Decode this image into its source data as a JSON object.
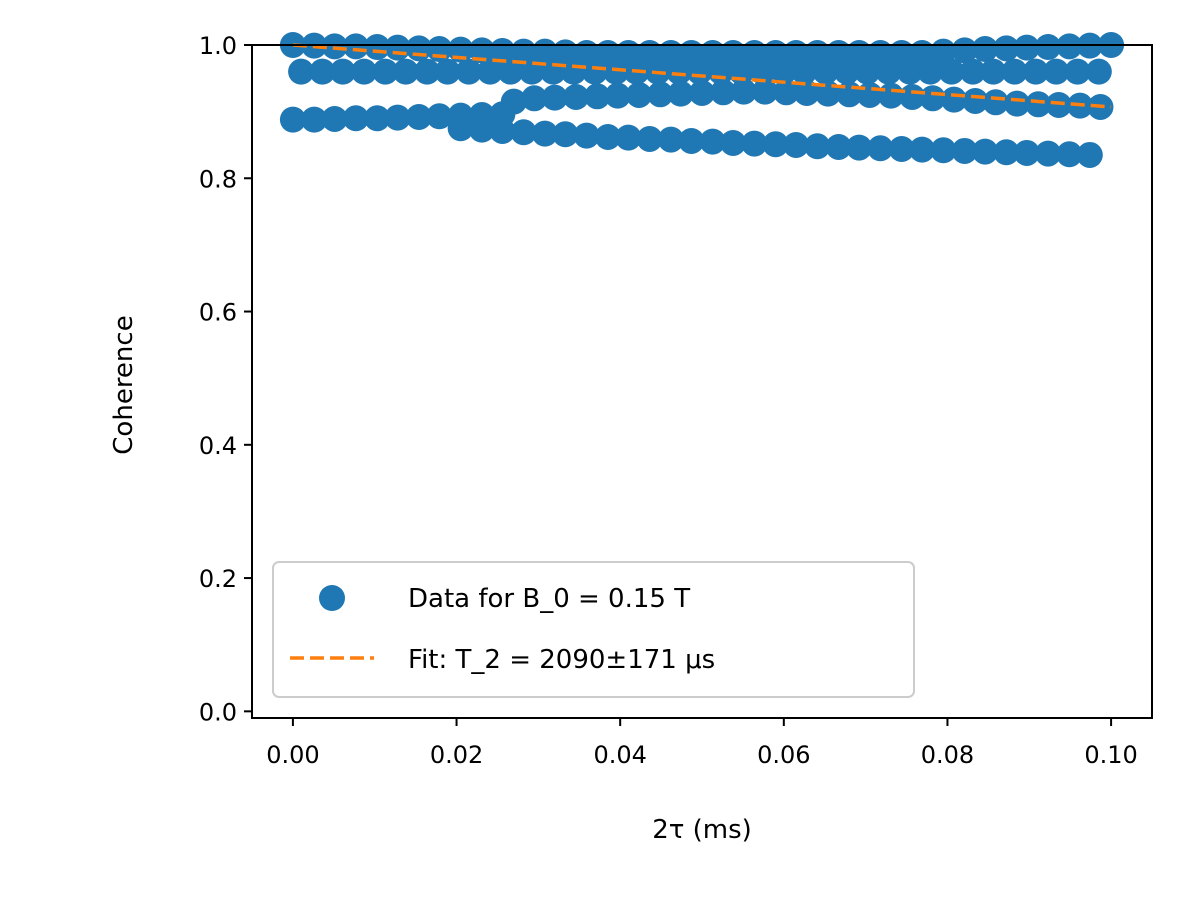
{
  "chart_data": {
    "type": "scatter",
    "xlabel": "2τ (ms)",
    "ylabel": "Coherence",
    "xlim": [
      -0.005,
      0.105
    ],
    "ylim": [
      -0.01,
      1.0
    ],
    "x_ticks": [
      "0.00",
      "0.02",
      "0.04",
      "0.06",
      "0.08",
      "0.10"
    ],
    "y_ticks": [
      "0.0",
      "0.2",
      "0.4",
      "0.6",
      "0.8",
      "1.0"
    ],
    "grid": false,
    "legend_position": "lower-left",
    "colors": {
      "data": "#1f77b4",
      "fit": "#ff7f0e"
    },
    "series": [
      {
        "name": "Data for B_0 = 0.15 T",
        "kind": "scatter",
        "color": "#1f77b4",
        "points": [
          [
            0.0,
            1.0
          ],
          [
            0.0026,
            0.999
          ],
          [
            0.0051,
            0.998
          ],
          [
            0.0077,
            0.998
          ],
          [
            0.0103,
            0.997
          ],
          [
            0.0128,
            0.996
          ],
          [
            0.0154,
            0.995
          ],
          [
            0.0179,
            0.994
          ],
          [
            0.0205,
            0.993
          ],
          [
            0.0231,
            0.992
          ],
          [
            0.0256,
            0.991
          ],
          [
            0.0282,
            0.99
          ],
          [
            0.0308,
            0.99
          ],
          [
            0.0333,
            0.989
          ],
          [
            0.0359,
            0.988
          ],
          [
            0.0385,
            0.988
          ],
          [
            0.041,
            0.988
          ],
          [
            0.0436,
            0.988
          ],
          [
            0.0462,
            0.988
          ],
          [
            0.0487,
            0.988
          ],
          [
            0.0513,
            0.988
          ],
          [
            0.0538,
            0.988
          ],
          [
            0.0564,
            0.988
          ],
          [
            0.059,
            0.988
          ],
          [
            0.0615,
            0.988
          ],
          [
            0.0641,
            0.988
          ],
          [
            0.0667,
            0.988
          ],
          [
            0.0692,
            0.988
          ],
          [
            0.0718,
            0.988
          ],
          [
            0.0744,
            0.988
          ],
          [
            0.0769,
            0.988
          ],
          [
            0.0795,
            0.99
          ],
          [
            0.0821,
            0.992
          ],
          [
            0.0846,
            0.994
          ],
          [
            0.0872,
            0.995
          ],
          [
            0.0897,
            0.996
          ],
          [
            0.0923,
            0.997
          ],
          [
            0.0949,
            0.998
          ],
          [
            0.0974,
            0.999
          ],
          [
            0.1,
            1.0
          ],
          [
            0.001,
            0.96
          ],
          [
            0.0036,
            0.96
          ],
          [
            0.0061,
            0.96
          ],
          [
            0.0087,
            0.96
          ],
          [
            0.0113,
            0.96
          ],
          [
            0.0138,
            0.96
          ],
          [
            0.0164,
            0.96
          ],
          [
            0.0189,
            0.96
          ],
          [
            0.0215,
            0.96
          ],
          [
            0.0241,
            0.96
          ],
          [
            0.0266,
            0.96
          ],
          [
            0.0292,
            0.96
          ],
          [
            0.0318,
            0.96
          ],
          [
            0.0343,
            0.96
          ],
          [
            0.0369,
            0.96
          ],
          [
            0.0395,
            0.96
          ],
          [
            0.042,
            0.96
          ],
          [
            0.0446,
            0.96
          ],
          [
            0.0472,
            0.96
          ],
          [
            0.0497,
            0.96
          ],
          [
            0.0523,
            0.96
          ],
          [
            0.0548,
            0.96
          ],
          [
            0.0574,
            0.96
          ],
          [
            0.06,
            0.96
          ],
          [
            0.0625,
            0.96
          ],
          [
            0.0651,
            0.96
          ],
          [
            0.0677,
            0.96
          ],
          [
            0.0702,
            0.96
          ],
          [
            0.0728,
            0.96
          ],
          [
            0.0754,
            0.96
          ],
          [
            0.0779,
            0.96
          ],
          [
            0.0805,
            0.96
          ],
          [
            0.0831,
            0.96
          ],
          [
            0.0856,
            0.96
          ],
          [
            0.0882,
            0.96
          ],
          [
            0.0908,
            0.96
          ],
          [
            0.0933,
            0.96
          ],
          [
            0.0959,
            0.96
          ],
          [
            0.0985,
            0.96
          ],
          [
            0.027,
            0.915
          ],
          [
            0.0295,
            0.92
          ],
          [
            0.032,
            0.921
          ],
          [
            0.0346,
            0.922
          ],
          [
            0.0372,
            0.923
          ],
          [
            0.0397,
            0.924
          ],
          [
            0.0423,
            0.925
          ],
          [
            0.0449,
            0.926
          ],
          [
            0.0474,
            0.927
          ],
          [
            0.05,
            0.928
          ],
          [
            0.0526,
            0.929
          ],
          [
            0.0551,
            0.93
          ],
          [
            0.0577,
            0.93
          ],
          [
            0.0603,
            0.929
          ],
          [
            0.0628,
            0.928
          ],
          [
            0.0654,
            0.927
          ],
          [
            0.068,
            0.926
          ],
          [
            0.0705,
            0.925
          ],
          [
            0.0731,
            0.924
          ],
          [
            0.0757,
            0.922
          ],
          [
            0.0782,
            0.92
          ],
          [
            0.0808,
            0.918
          ],
          [
            0.0834,
            0.916
          ],
          [
            0.0859,
            0.914
          ],
          [
            0.0885,
            0.912
          ],
          [
            0.0911,
            0.911
          ],
          [
            0.0936,
            0.91
          ],
          [
            0.0962,
            0.909
          ],
          [
            0.0987,
            0.907
          ],
          [
            0.0,
            0.888
          ],
          [
            0.0026,
            0.888
          ],
          [
            0.0051,
            0.889
          ],
          [
            0.0077,
            0.89
          ],
          [
            0.0103,
            0.89
          ],
          [
            0.0128,
            0.891
          ],
          [
            0.0154,
            0.892
          ],
          [
            0.0179,
            0.893
          ],
          [
            0.0205,
            0.894
          ],
          [
            0.0231,
            0.895
          ],
          [
            0.0256,
            0.896
          ],
          [
            0.0205,
            0.875
          ],
          [
            0.0231,
            0.873
          ],
          [
            0.0256,
            0.871
          ],
          [
            0.0282,
            0.869
          ],
          [
            0.0308,
            0.867
          ],
          [
            0.0333,
            0.866
          ],
          [
            0.0359,
            0.864
          ],
          [
            0.0385,
            0.862
          ],
          [
            0.041,
            0.861
          ],
          [
            0.0436,
            0.859
          ],
          [
            0.0462,
            0.858
          ],
          [
            0.0487,
            0.856
          ],
          [
            0.0513,
            0.855
          ],
          [
            0.0538,
            0.853
          ],
          [
            0.0564,
            0.852
          ],
          [
            0.059,
            0.851
          ],
          [
            0.0615,
            0.85
          ],
          [
            0.0641,
            0.848
          ],
          [
            0.0667,
            0.847
          ],
          [
            0.0692,
            0.846
          ],
          [
            0.0718,
            0.845
          ],
          [
            0.0744,
            0.844
          ],
          [
            0.0769,
            0.843
          ],
          [
            0.0795,
            0.842
          ],
          [
            0.0821,
            0.841
          ],
          [
            0.0846,
            0.84
          ],
          [
            0.0872,
            0.839
          ],
          [
            0.0897,
            0.838
          ],
          [
            0.0923,
            0.837
          ],
          [
            0.0949,
            0.836
          ],
          [
            0.0974,
            0.835
          ]
        ]
      },
      {
        "name": "Fit: T_2 = 2090±171 μs",
        "kind": "line",
        "style": "dashed",
        "color": "#ff7f0e",
        "x": [
          0.0,
          0.1
        ],
        "y": [
          1.0,
          0.907
        ]
      }
    ]
  }
}
